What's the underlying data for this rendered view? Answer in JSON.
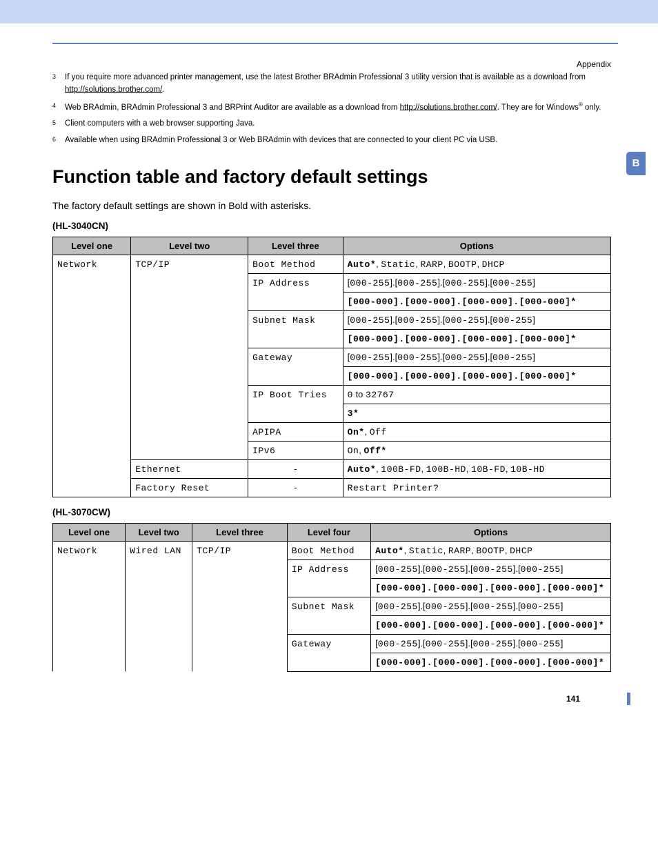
{
  "page": {
    "header_label": "Appendix",
    "side_tab": "B",
    "footer_page": "141"
  },
  "footnotes": [
    {
      "num": "3",
      "html": "If you require more advanced printer management, use the latest Brother BRAdmin Professional 3 utility version that is available as a download from <span class='underline'>http://solutions.brother.com/</span>."
    },
    {
      "num": "4",
      "html": "Web BRAdmin, BRAdmin Professional 3 and BRPrint Auditor are available as a download from <span class='underline'>http://solutions.brother.com/</span>. They are for Windows<sup>®</sup> only."
    },
    {
      "num": "5",
      "html": "Client computers with a web browser supporting Java."
    },
    {
      "num": "6",
      "html": "Available when using BRAdmin Professional 3 or Web BRAdmin with devices that are connected to your client PC via USB."
    }
  ],
  "section": {
    "title": "Function table and factory default settings",
    "intro": "The factory default settings are shown in Bold with asterisks."
  },
  "table1": {
    "model": "(HL-3040CN)",
    "headers": [
      "Level one",
      "Level two",
      "Level three",
      "Options"
    ],
    "col_widths": [
      "14%",
      "21%",
      "17%",
      "48%"
    ],
    "level1": "Network",
    "groups": [
      {
        "level2": "TCP/IP",
        "rows": [
          {
            "level3": "Boot Method",
            "options": [
              {
                "parts": [
                  {
                    "t": "Auto*",
                    "mono": true,
                    "bold": true
                  },
                  {
                    "t": ", ",
                    "mono": false
                  },
                  {
                    "t": "Static",
                    "mono": true
                  },
                  {
                    "t": ", ",
                    "mono": false
                  },
                  {
                    "t": "RARP",
                    "mono": true
                  },
                  {
                    "t": ", ",
                    "mono": false
                  },
                  {
                    "t": "BOOTP",
                    "mono": true
                  },
                  {
                    "t": ", ",
                    "mono": false
                  },
                  {
                    "t": "DHCP",
                    "mono": true
                  }
                ]
              }
            ]
          },
          {
            "level3": "IP Address",
            "options": [
              {
                "parts": [
                  {
                    "t": "[",
                    "mono": false
                  },
                  {
                    "t": "000-255",
                    "mono": true
                  },
                  {
                    "t": "].[",
                    "mono": false
                  },
                  {
                    "t": "000-255",
                    "mono": true
                  },
                  {
                    "t": "].[",
                    "mono": false
                  },
                  {
                    "t": "000-255",
                    "mono": true
                  },
                  {
                    "t": "].[",
                    "mono": false
                  },
                  {
                    "t": "000-255",
                    "mono": true
                  },
                  {
                    "t": "]",
                    "mono": false
                  }
                ]
              },
              {
                "parts": [
                  {
                    "t": "[000-000].[000-000].[000-000].[000-000]*",
                    "mono": true,
                    "bold": true
                  }
                ]
              }
            ]
          },
          {
            "level3": "Subnet Mask",
            "options": [
              {
                "parts": [
                  {
                    "t": "[",
                    "mono": false
                  },
                  {
                    "t": "000-255",
                    "mono": true
                  },
                  {
                    "t": "].[",
                    "mono": false
                  },
                  {
                    "t": "000-255",
                    "mono": true
                  },
                  {
                    "t": "].[",
                    "mono": false
                  },
                  {
                    "t": "000-255",
                    "mono": true
                  },
                  {
                    "t": "].[",
                    "mono": false
                  },
                  {
                    "t": "000-255",
                    "mono": true
                  },
                  {
                    "t": "]",
                    "mono": false
                  }
                ]
              },
              {
                "parts": [
                  {
                    "t": "[000-000].[000-000].[000-000].[000-000]*",
                    "mono": true,
                    "bold": true
                  }
                ]
              }
            ]
          },
          {
            "level3": "Gateway",
            "options": [
              {
                "parts": [
                  {
                    "t": "[",
                    "mono": false
                  },
                  {
                    "t": "000-255",
                    "mono": true
                  },
                  {
                    "t": "].[",
                    "mono": false
                  },
                  {
                    "t": "000-255",
                    "mono": true
                  },
                  {
                    "t": "].[",
                    "mono": false
                  },
                  {
                    "t": "000-255",
                    "mono": true
                  },
                  {
                    "t": "].[",
                    "mono": false
                  },
                  {
                    "t": "000-255",
                    "mono": true
                  },
                  {
                    "t": "]",
                    "mono": false
                  }
                ]
              },
              {
                "parts": [
                  {
                    "t": "[000-000].[000-000].[000-000].[000-000]*",
                    "mono": true,
                    "bold": true
                  }
                ]
              }
            ]
          },
          {
            "level3": "IP Boot Tries",
            "options": [
              {
                "parts": [
                  {
                    "t": "0",
                    "mono": true
                  },
                  {
                    "t": " to ",
                    "mono": false
                  },
                  {
                    "t": "32767",
                    "mono": true
                  }
                ]
              },
              {
                "parts": [
                  {
                    "t": "3*",
                    "mono": true,
                    "bold": true
                  }
                ]
              }
            ]
          },
          {
            "level3": "APIPA",
            "options": [
              {
                "parts": [
                  {
                    "t": "On*",
                    "mono": true,
                    "bold": true
                  },
                  {
                    "t": ", ",
                    "mono": false
                  },
                  {
                    "t": "Off",
                    "mono": true
                  }
                ]
              }
            ]
          },
          {
            "level3": "IPv6",
            "options": [
              {
                "parts": [
                  {
                    "t": "On",
                    "mono": true
                  },
                  {
                    "t": ", ",
                    "mono": false
                  },
                  {
                    "t": "Off*",
                    "mono": true,
                    "bold": true
                  }
                ]
              }
            ]
          }
        ]
      },
      {
        "level2": "Ethernet",
        "rows": [
          {
            "level3": "-",
            "center": true,
            "options": [
              {
                "parts": [
                  {
                    "t": "Auto*",
                    "mono": true,
                    "bold": true
                  },
                  {
                    "t": ", ",
                    "mono": false
                  },
                  {
                    "t": "100B-FD",
                    "mono": true
                  },
                  {
                    "t": ", ",
                    "mono": false
                  },
                  {
                    "t": "100B-HD",
                    "mono": true
                  },
                  {
                    "t": ", ",
                    "mono": false
                  },
                  {
                    "t": "10B-FD",
                    "mono": true
                  },
                  {
                    "t": ", ",
                    "mono": false
                  },
                  {
                    "t": "10B-HD",
                    "mono": true
                  }
                ]
              }
            ]
          }
        ]
      },
      {
        "level2": "Factory Reset",
        "rows": [
          {
            "level3": "-",
            "center": true,
            "options": [
              {
                "parts": [
                  {
                    "t": "Restart Printer?",
                    "mono": true
                  }
                ]
              }
            ]
          }
        ]
      }
    ]
  },
  "table2": {
    "model": "(HL-3070CW)",
    "headers": [
      "Level one",
      "Level two",
      "Level three",
      "Level four",
      "Options"
    ],
    "col_widths": [
      "13%",
      "12%",
      "17%",
      "15%",
      "43%"
    ],
    "level1": "Network",
    "level2": "Wired LAN",
    "level3": "TCP/IP",
    "rows": [
      {
        "level4": "Boot Method",
        "options": [
          {
            "parts": [
              {
                "t": "Auto*",
                "mono": true,
                "bold": true
              },
              {
                "t": ", ",
                "mono": false
              },
              {
                "t": "Static",
                "mono": true
              },
              {
                "t": ", ",
                "mono": false
              },
              {
                "t": "RARP",
                "mono": true
              },
              {
                "t": ", ",
                "mono": false
              },
              {
                "t": "BOOTP",
                "mono": true
              },
              {
                "t": ", ",
                "mono": false
              },
              {
                "t": "DHCP",
                "mono": true
              }
            ]
          }
        ]
      },
      {
        "level4": "IP Address",
        "options": [
          {
            "parts": [
              {
                "t": "[",
                "mono": false
              },
              {
                "t": "000-255",
                "mono": true
              },
              {
                "t": "].[",
                "mono": false
              },
              {
                "t": "000-255",
                "mono": true
              },
              {
                "t": "].[",
                "mono": false
              },
              {
                "t": "000-255",
                "mono": true
              },
              {
                "t": "].[",
                "mono": false
              },
              {
                "t": "000-255",
                "mono": true
              },
              {
                "t": "]",
                "mono": false
              }
            ]
          },
          {
            "parts": [
              {
                "t": "[000-000].[000-000].[000-000].[000-000]*",
                "mono": true,
                "bold": true
              }
            ]
          }
        ]
      },
      {
        "level4": "Subnet Mask",
        "options": [
          {
            "parts": [
              {
                "t": "[",
                "mono": false
              },
              {
                "t": "000-255",
                "mono": true
              },
              {
                "t": "].[",
                "mono": false
              },
              {
                "t": "000-255",
                "mono": true
              },
              {
                "t": "].[",
                "mono": false
              },
              {
                "t": "000-255",
                "mono": true
              },
              {
                "t": "].[",
                "mono": false
              },
              {
                "t": "000-255",
                "mono": true
              },
              {
                "t": "]",
                "mono": false
              }
            ]
          },
          {
            "parts": [
              {
                "t": "[000-000].[000-000].[000-000].[000-000]*",
                "mono": true,
                "bold": true
              }
            ]
          }
        ]
      },
      {
        "level4": "Gateway",
        "options": [
          {
            "parts": [
              {
                "t": "[",
                "mono": false
              },
              {
                "t": "000-255",
                "mono": true
              },
              {
                "t": "].[",
                "mono": false
              },
              {
                "t": "000-255",
                "mono": true
              },
              {
                "t": "].[",
                "mono": false
              },
              {
                "t": "000-255",
                "mono": true
              },
              {
                "t": "].[",
                "mono": false
              },
              {
                "t": "000-255",
                "mono": true
              },
              {
                "t": "]",
                "mono": false
              }
            ]
          },
          {
            "parts": [
              {
                "t": "[000-000].[000-000].[000-000].[000-000]*",
                "mono": true,
                "bold": true
              }
            ]
          }
        ]
      }
    ]
  }
}
